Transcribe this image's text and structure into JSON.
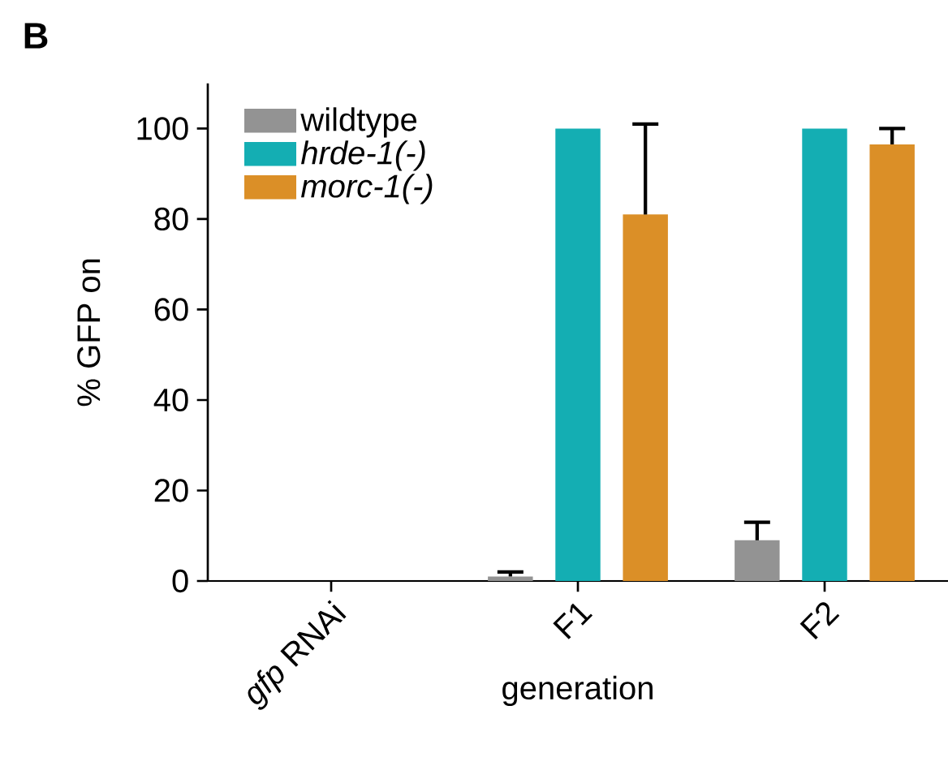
{
  "chart_data": {
    "type": "bar",
    "title": "B",
    "xlabel": "generation",
    "ylabel": "% GFP on",
    "categories": [
      "*gfp* RNAi",
      "F1",
      "F2"
    ],
    "series": [
      {
        "name": "wildtype",
        "color": "#939393",
        "values": [
          0,
          1,
          9
        ],
        "errors": [
          null,
          [
            1,
            2
          ],
          [
            9,
            13
          ]
        ]
      },
      {
        "name": "*hrde-1(-)*",
        "color": "#14aeb3",
        "values": [
          0,
          100,
          100
        ],
        "errors": [
          null,
          null,
          null
        ]
      },
      {
        "name": "*morc-1(-)*",
        "color": "#db8f27",
        "values": [
          0,
          81,
          96.5
        ],
        "errors": [
          null,
          [
            81,
            101
          ],
          [
            96.5,
            100
          ]
        ]
      }
    ],
    "ylim": [
      0,
      110
    ],
    "yticks": [
      0,
      20,
      40,
      60,
      80,
      100
    ],
    "legend": "top left"
  }
}
